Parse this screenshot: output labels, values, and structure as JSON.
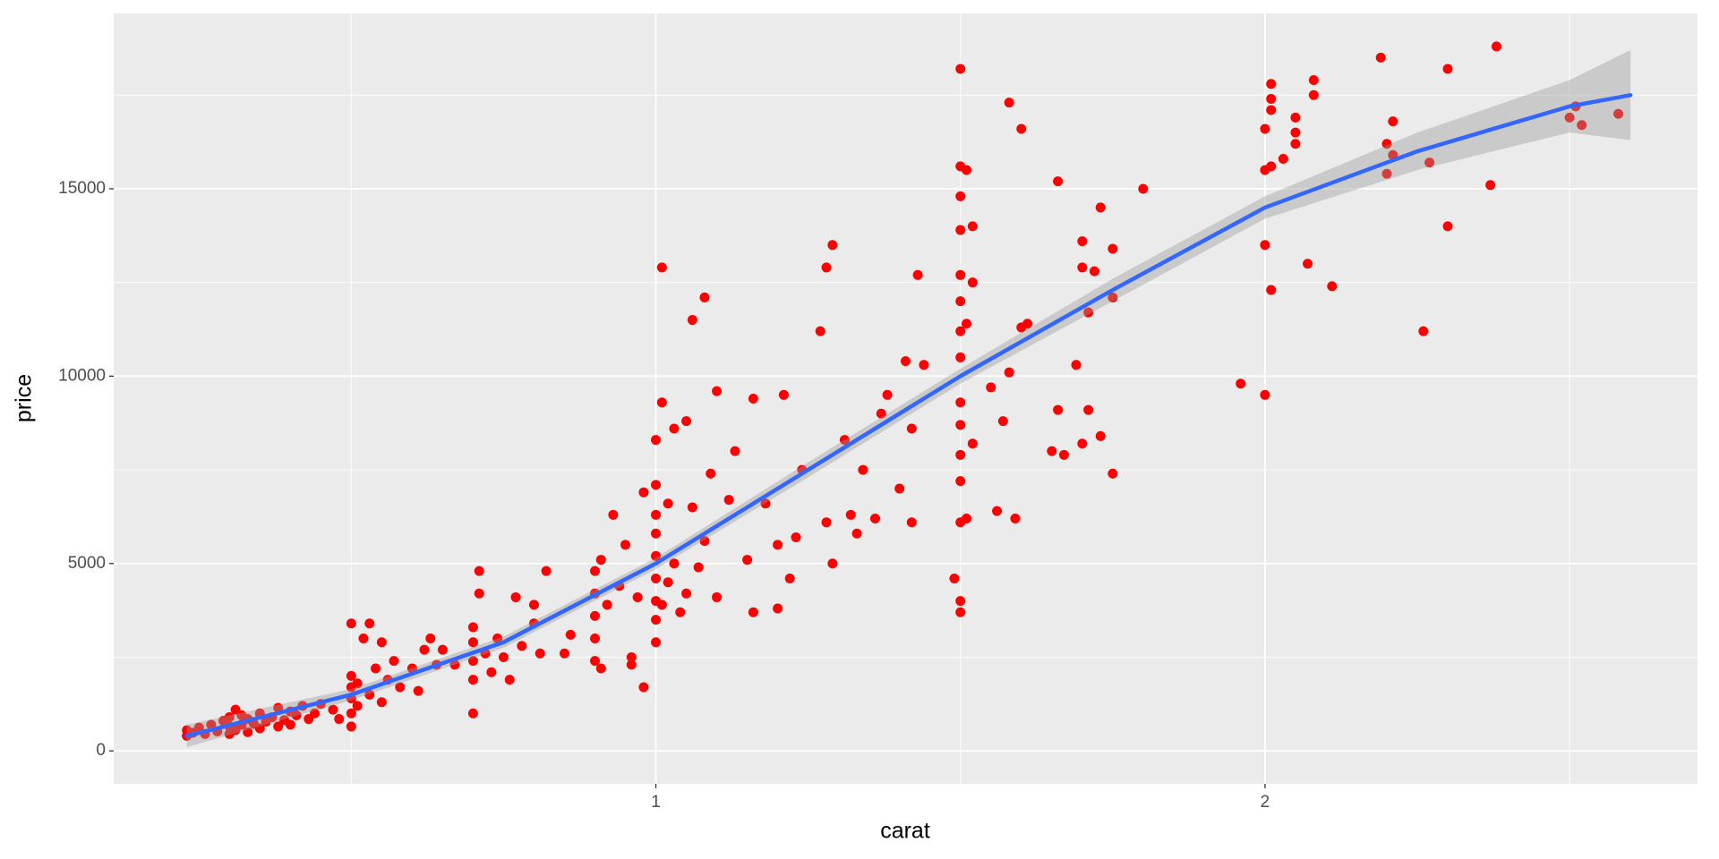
{
  "chart_data": {
    "type": "scatter",
    "xlabel": "carat",
    "ylabel": "price",
    "color": "#ff0000",
    "xlim": [
      0.11,
      2.71
    ],
    "ylim": [
      -880,
      19680
    ],
    "xticks": [
      1,
      2
    ],
    "yticks": [
      0,
      5000,
      10000,
      15000
    ],
    "xminor": [
      0.5,
      1.5,
      2.5
    ],
    "yminor": [
      2500,
      7500,
      12500,
      17500
    ],
    "grid": true,
    "x": [
      0.23,
      0.23,
      0.24,
      0.25,
      0.26,
      0.27,
      0.28,
      0.29,
      0.3,
      0.3,
      0.3,
      0.31,
      0.31,
      0.32,
      0.32,
      0.33,
      0.33,
      0.34,
      0.35,
      0.35,
      0.36,
      0.37,
      0.38,
      0.38,
      0.39,
      0.4,
      0.4,
      0.41,
      0.42,
      0.43,
      0.44,
      0.45,
      0.47,
      0.48,
      0.5,
      0.5,
      0.5,
      0.5,
      0.5,
      0.5,
      0.51,
      0.51,
      0.52,
      0.53,
      0.53,
      0.54,
      0.55,
      0.55,
      0.56,
      0.57,
      0.58,
      0.6,
      0.61,
      0.62,
      0.63,
      0.64,
      0.65,
      0.67,
      0.7,
      0.7,
      0.7,
      0.7,
      0.7,
      0.71,
      0.71,
      0.72,
      0.73,
      0.74,
      0.75,
      0.76,
      0.77,
      0.78,
      0.8,
      0.8,
      0.81,
      0.82,
      0.85,
      0.86,
      0.9,
      0.9,
      0.9,
      0.9,
      0.9,
      0.91,
      0.91,
      0.92,
      0.93,
      0.94,
      0.95,
      0.96,
      0.96,
      0.97,
      0.98,
      0.98,
      1.0,
      1.0,
      1.0,
      1.0,
      1.0,
      1.0,
      1.0,
      1.0,
      1.0,
      1.01,
      1.01,
      1.01,
      1.02,
      1.02,
      1.03,
      1.03,
      1.04,
      1.05,
      1.05,
      1.06,
      1.06,
      1.07,
      1.08,
      1.08,
      1.09,
      1.1,
      1.1,
      1.12,
      1.13,
      1.15,
      1.16,
      1.16,
      1.18,
      1.2,
      1.2,
      1.21,
      1.22,
      1.23,
      1.24,
      1.27,
      1.28,
      1.28,
      1.29,
      1.29,
      1.31,
      1.32,
      1.33,
      1.34,
      1.36,
      1.37,
      1.38,
      1.4,
      1.41,
      1.42,
      1.42,
      1.43,
      1.44,
      1.49,
      1.5,
      1.5,
      1.5,
      1.5,
      1.5,
      1.5,
      1.5,
      1.5,
      1.5,
      1.5,
      1.5,
      1.5,
      1.5,
      1.5,
      1.5,
      1.51,
      1.51,
      1.51,
      1.52,
      1.52,
      1.52,
      1.55,
      1.56,
      1.57,
      1.58,
      1.58,
      1.59,
      1.6,
      1.6,
      1.61,
      1.65,
      1.66,
      1.66,
      1.67,
      1.69,
      1.7,
      1.7,
      1.7,
      1.71,
      1.71,
      1.72,
      1.73,
      1.73,
      1.75,
      1.75,
      1.75,
      1.8,
      1.96,
      2.0,
      2.0,
      2.0,
      2.0,
      2.01,
      2.01,
      2.01,
      2.01,
      2.01,
      2.03,
      2.05,
      2.05,
      2.05,
      2.07,
      2.08,
      2.08,
      2.11,
      2.19,
      2.2,
      2.2,
      2.21,
      2.21,
      2.26,
      2.27,
      2.3,
      2.3,
      2.38,
      2.37,
      2.5,
      2.51,
      2.52,
      2.58
    ],
    "values": [
      400,
      550,
      480,
      620,
      450,
      700,
      520,
      800,
      450,
      650,
      900,
      560,
      1100,
      700,
      950,
      500,
      850,
      720,
      600,
      1000,
      780,
      900,
      650,
      1150,
      820,
      700,
      1050,
      950,
      1200,
      850,
      1000,
      1250,
      1100,
      850,
      650,
      1000,
      1400,
      1700,
      2000,
      3400,
      1200,
      1800,
      3000,
      1500,
      3400,
      2200,
      1300,
      2900,
      1900,
      2400,
      1700,
      2200,
      1600,
      2700,
      3000,
      2300,
      2700,
      2300,
      1000,
      1900,
      2400,
      2900,
      3300,
      4200,
      4800,
      2600,
      2100,
      3000,
      2500,
      1900,
      4100,
      2800,
      3400,
      3900,
      2600,
      4800,
      2600,
      3100,
      2400,
      3000,
      3600,
      4200,
      4800,
      2200,
      5100,
      3900,
      6300,
      4400,
      5500,
      2300,
      2500,
      4100,
      1700,
      6900,
      2900,
      3500,
      4000,
      4600,
      5200,
      5800,
      6300,
      7100,
      8300,
      9300,
      12900,
      3900,
      4500,
      6600,
      5000,
      8600,
      3700,
      4200,
      8800,
      11500,
      6500,
      4900,
      12100,
      5600,
      7400,
      9600,
      4100,
      6700,
      8000,
      5100,
      9400,
      3700,
      6600,
      3800,
      5500,
      9500,
      4600,
      5700,
      7500,
      11200,
      12900,
      6100,
      13500,
      5000,
      8300,
      6300,
      5800,
      7500,
      6200,
      9000,
      9500,
      7000,
      10400,
      6100,
      8600,
      12700,
      10300,
      4600,
      3700,
      4000,
      6100,
      7200,
      7900,
      8700,
      9300,
      10500,
      11200,
      12000,
      12700,
      13900,
      14800,
      15600,
      18200,
      15500,
      11400,
      6200,
      14000,
      12500,
      8200,
      9700,
      6400,
      8800,
      17300,
      10100,
      6200,
      16600,
      11300,
      11400,
      8000,
      15200,
      9100,
      7900,
      10300,
      13600,
      12900,
      8200,
      11700,
      9100,
      12800,
      14500,
      8400,
      13400,
      12100,
      7400,
      15000,
      9800,
      9500,
      13500,
      15500,
      16600,
      17800,
      17400,
      17100,
      12300,
      15600,
      15800,
      16900,
      16500,
      16200,
      13000,
      17900,
      17500,
      12400,
      18500,
      16200,
      15400,
      16800,
      15900,
      11200,
      15700,
      18200,
      14000,
      18800,
      15100,
      16900,
      17200,
      16700,
      17000
    ],
    "smooth": {
      "color": "#3366ff",
      "band_color": "#999999",
      "x": [
        0.23,
        0.5,
        0.75,
        1,
        1.25,
        1.5,
        1.75,
        2,
        2.25,
        2.5,
        2.6
      ],
      "values": [
        400,
        1500,
        2900,
        5000,
        7500,
        10000,
        12300,
        14500,
        16000,
        17200,
        17500
      ],
      "lower": [
        100,
        1350,
        2750,
        4850,
        7300,
        9800,
        12000,
        14200,
        15500,
        16500,
        16300
      ],
      "upper": [
        700,
        1650,
        3050,
        5150,
        7700,
        10200,
        12600,
        14800,
        16500,
        17900,
        18700
      ]
    }
  }
}
